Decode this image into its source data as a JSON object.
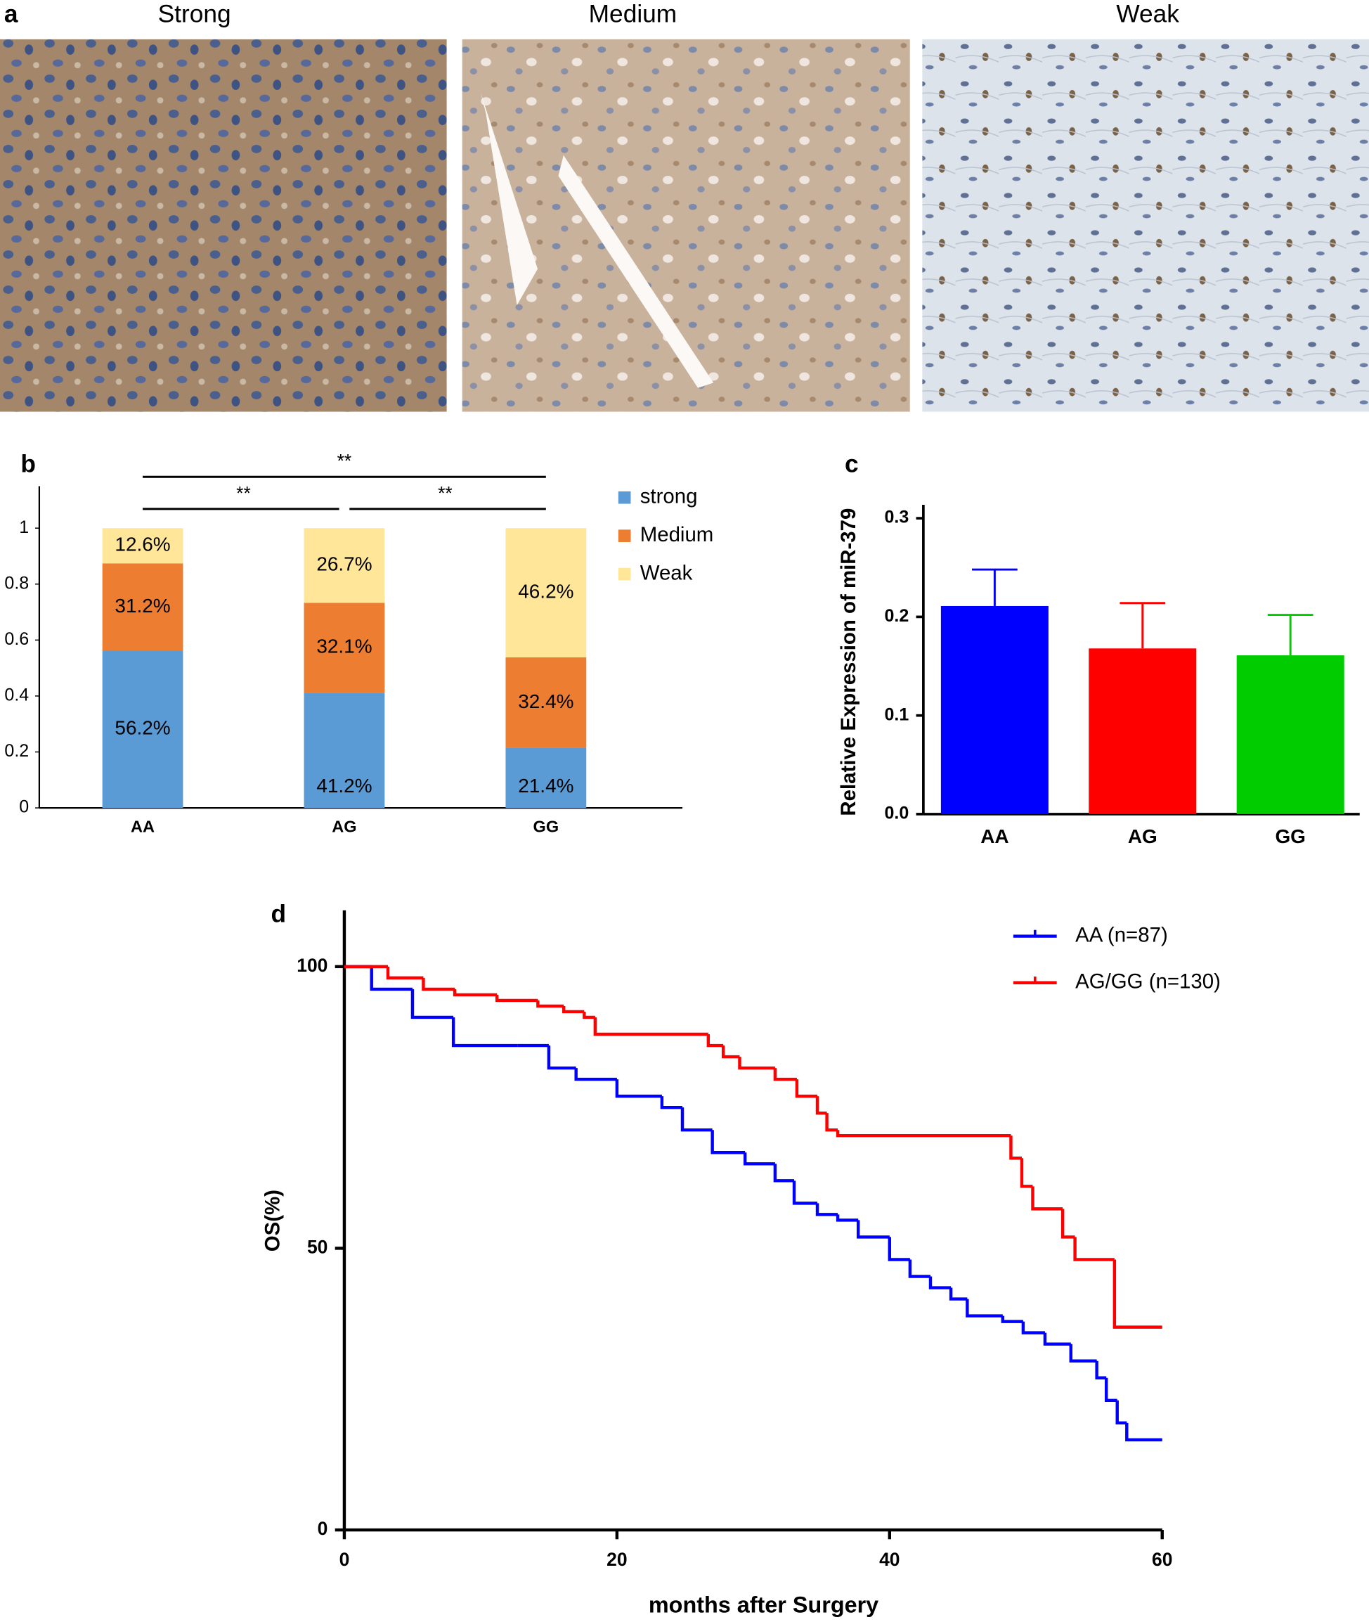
{
  "panel_a": {
    "panel_label": "a",
    "titles": [
      "Strong",
      "Medium",
      "Weak"
    ]
  },
  "chart_data": [
    {
      "type": "stacked_bar",
      "panel_label": "b",
      "categories": [
        "AA",
        "AG",
        "GG"
      ],
      "series": [
        {
          "name": "strong",
          "color": "#5b9bd5",
          "values": [
            0.562,
            0.412,
            0.214
          ],
          "value_labels": [
            "56.2%",
            "41.2%",
            "21.4%"
          ]
        },
        {
          "name": "Medium",
          "color": "#ed7d31",
          "values": [
            0.312,
            0.321,
            0.324
          ],
          "value_labels": [
            "31.2%",
            "32.1%",
            "32.4%"
          ]
        },
        {
          "name": "Weak",
          "color": "#ffe699",
          "values": [
            0.126,
            0.267,
            0.462
          ],
          "value_labels": [
            "12.6%",
            "26.7%",
            "46.2%"
          ]
        }
      ],
      "ylim": [
        0,
        1.15
      ],
      "yticks": [
        0,
        0.2,
        0.4,
        0.6,
        0.8,
        1
      ],
      "annotations": [
        {
          "text": "**",
          "from": "AA",
          "to": "GG"
        },
        {
          "text": "**",
          "from": "AA",
          "to": "AG"
        },
        {
          "text": "**",
          "from": "AG",
          "to": "GG"
        }
      ],
      "legend": "top-right"
    },
    {
      "type": "bar",
      "panel_label": "c",
      "ylabel": "Relative Expression of miR-379",
      "categories": [
        "AA",
        "AG",
        "GG"
      ],
      "values": [
        0.211,
        0.168,
        0.161
      ],
      "errors": [
        0.037,
        0.046,
        0.041
      ],
      "colors": [
        "#0000ff",
        "#ff0000",
        "#00cc00"
      ],
      "ylim": [
        0,
        0.3
      ],
      "yticks": [
        {
          "value": 0,
          "label": "0.0"
        },
        0.1,
        0.2,
        0.3
      ]
    },
    {
      "type": "step",
      "panel_label": "d",
      "xlabel": "months after Surgery",
      "ylabel": "OS(%)",
      "xlim": [
        0,
        60
      ],
      "xticks": [
        0,
        20,
        40,
        60
      ],
      "ylim": [
        0,
        110
      ],
      "yticks": [
        0,
        50,
        100
      ],
      "legend": "top-right",
      "series": [
        {
          "name": "AA (n=87)",
          "color": "#0000ff",
          "x": [
            0,
            2,
            5,
            8,
            12.7,
            15,
            17,
            20,
            23.3,
            24.8,
            27,
            29.4,
            31.6,
            33,
            34.7,
            36.2,
            37.7,
            40,
            41.5,
            43,
            44.5,
            45.7,
            48.3,
            49.8,
            51.4,
            53.3,
            55.2,
            55.9,
            56.7,
            57.4,
            60
          ],
          "y": [
            100,
            96,
            91,
            86,
            86,
            82,
            80,
            77,
            75,
            71,
            67,
            65,
            62,
            58,
            56,
            55,
            52,
            48,
            45,
            43,
            41,
            38,
            37,
            35,
            33,
            30,
            27,
            23,
            19,
            16,
            16
          ]
        },
        {
          "name": "AG/GG (n=130)",
          "color": "#ff0000",
          "x": [
            0,
            3.2,
            5.8,
            8.1,
            11.2,
            14.2,
            16.1,
            17.6,
            18.4,
            26.7,
            27.8,
            29,
            31.6,
            33.2,
            34.7,
            35.4,
            36.2,
            48.9,
            49.7,
            50.5,
            52.7,
            53.6,
            56.5,
            60
          ],
          "y": [
            100,
            98,
            96,
            95,
            94,
            93,
            92,
            91,
            88,
            86,
            84,
            82,
            80,
            77,
            74,
            71,
            70,
            66,
            61,
            57,
            52,
            48,
            36,
            36
          ]
        }
      ]
    }
  ]
}
